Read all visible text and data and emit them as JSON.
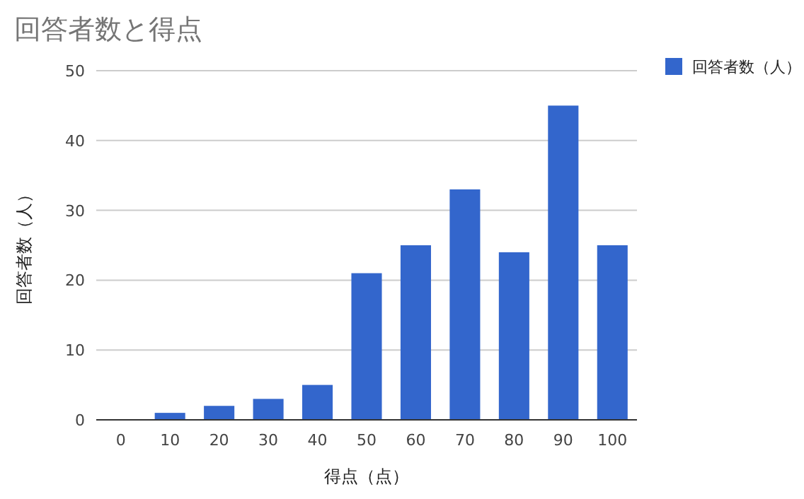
{
  "chart_data": {
    "type": "bar",
    "title": "回答者数と得点",
    "xlabel": "得点（点）",
    "ylabel": "回答者数（人）",
    "categories": [
      "0",
      "10",
      "20",
      "30",
      "40",
      "50",
      "60",
      "70",
      "80",
      "90",
      "100"
    ],
    "series": [
      {
        "name": "回答者数（人）",
        "color": "#3366cc",
        "values": [
          0,
          1,
          2,
          3,
          5,
          21,
          25,
          33,
          24,
          45,
          25
        ]
      }
    ],
    "ylim": [
      0,
      50
    ],
    "yticks": [
      0,
      10,
      20,
      30,
      40,
      50
    ],
    "grid": "y",
    "legend": "right"
  }
}
